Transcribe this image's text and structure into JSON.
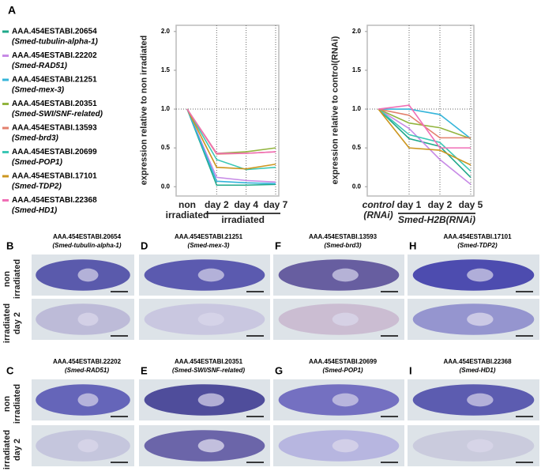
{
  "figure_label": "A",
  "chart_data": [
    {
      "type": "line",
      "y_label": "expression relative to non irradiated",
      "categories": [
        "non irradiated",
        "day 2",
        "day 4",
        "day 7"
      ],
      "group_label": "irradiated",
      "ylim": [
        -0.12,
        2.08
      ],
      "yticks": [
        {
          "value": 0,
          "label": "0.0"
        },
        {
          "value": 0.5,
          "label": "0.5"
        },
        {
          "value": 1,
          "label": "1.0"
        },
        {
          "value": 1.5,
          "label": "1.5"
        },
        {
          "value": 2,
          "label": "2.0"
        }
      ],
      "reference_line": 1,
      "series": [
        {
          "name": "AAA.454ESTABI.20654",
          "gene": "(Smed-tubulin-alpha-1)",
          "color": "#1fa88a",
          "values": [
            1,
            0.02,
            0.02,
            0.03
          ]
        },
        {
          "name": "AAA.454ESTABI.22202",
          "gene": "(Smed-RAD51)",
          "color": "#c78ae6",
          "values": [
            1,
            0.12,
            0.08,
            0.06
          ]
        },
        {
          "name": "AAA.454ESTABI.21251",
          "gene": "(Smed-mex-3)",
          "color": "#35b5da",
          "values": [
            1,
            0.07,
            0.05,
            0.04
          ]
        },
        {
          "name": "AAA.454ESTABI.20351",
          "gene": "(Smed-SWI/SNF-related)",
          "color": "#92b43e",
          "values": [
            1,
            0.43,
            0.45,
            0.5
          ]
        },
        {
          "name": "AAA.454ESTABI.13593",
          "gene": "(Smed-brd3)",
          "color": "#e3806d",
          "values": [
            1,
            0.42,
            0.43,
            0.45
          ]
        },
        {
          "name": "AAA.454ESTABI.20699",
          "gene": "(Smed-POP1)",
          "color": "#3cc7b5",
          "values": [
            1,
            0.35,
            0.22,
            0.25
          ]
        },
        {
          "name": "AAA.454ESTABI.17101",
          "gene": "(Smed-TDP2)",
          "color": "#cc961f",
          "values": [
            1,
            0.25,
            0.23,
            0.29
          ]
        },
        {
          "name": "AAA.454ESTABI.22368",
          "gene": "(Smed-HD1)",
          "color": "#f06fb6",
          "values": [
            1,
            0.43,
            0.43,
            0.45
          ]
        }
      ]
    },
    {
      "type": "line",
      "y_label": "expression relative to control(RNAi)",
      "categories": [
        "control (RNAi)",
        "day 1",
        "day 2",
        "day 5"
      ],
      "group_label": "Smed-H2B(RNAi)",
      "ylim": [
        -0.12,
        2.08
      ],
      "yticks": [
        {
          "value": 0,
          "label": "0.0"
        },
        {
          "value": 0.5,
          "label": "0.5"
        },
        {
          "value": 1,
          "label": "1.0"
        },
        {
          "value": 1.5,
          "label": "1.5"
        },
        {
          "value": 2,
          "label": "2.0"
        }
      ],
      "reference_line": 1,
      "series": [
        {
          "color": "#1fa88a",
          "values": [
            1,
            0.62,
            0.52,
            0.12
          ]
        },
        {
          "color": "#c78ae6",
          "values": [
            1,
            0.75,
            0.35,
            0.03
          ]
        },
        {
          "color": "#35b5da",
          "values": [
            1,
            1,
            0.93,
            0.62
          ]
        },
        {
          "color": "#92b43e",
          "values": [
            1,
            0.82,
            0.76,
            0.62
          ]
        },
        {
          "color": "#e3806d",
          "values": [
            1,
            0.92,
            0.63,
            0.63
          ]
        },
        {
          "color": "#3cc7b5",
          "values": [
            1,
            0.67,
            0.57,
            0.2
          ]
        },
        {
          "color": "#cc961f",
          "values": [
            1,
            0.5,
            0.47,
            0.28
          ]
        },
        {
          "color": "#f06fb6",
          "values": [
            1,
            1.05,
            0.5,
            0.5
          ]
        }
      ]
    }
  ],
  "row_labels": [
    "non irradiated",
    "irradiated day 2"
  ],
  "panels": [
    {
      "letter": "B",
      "id": "AAA.454ESTABI.20654",
      "gene": "(Smed-tubulin-alpha-1)"
    },
    {
      "letter": "D",
      "id": "AAA.454ESTABI.21251",
      "gene": "(Smed-mex-3)"
    },
    {
      "letter": "F",
      "id": "AAA.454ESTABI.13593",
      "gene": "(Smed-brd3)"
    },
    {
      "letter": "H",
      "id": "AAA.454ESTABI.17101",
      "gene": "(Smed-TDP2)"
    },
    {
      "letter": "C",
      "id": "AAA.454ESTABI.22202",
      "gene": "(Smed-RAD51)"
    },
    {
      "letter": "E",
      "id": "AAA.454ESTABI.20351",
      "gene": "(Smed-SWI/SNF-related)"
    },
    {
      "letter": "G",
      "id": "AAA.454ESTABI.20699",
      "gene": "(Smed-POP1)"
    },
    {
      "letter": "I",
      "id": "AAA.454ESTABI.22368",
      "gene": "(Smed-HD1)"
    }
  ]
}
